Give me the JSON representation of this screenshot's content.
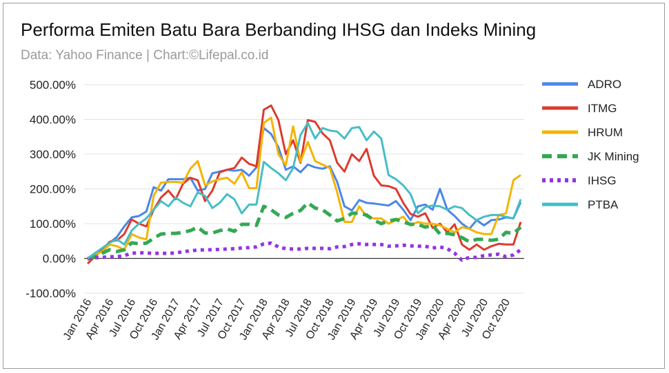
{
  "header": {
    "title": "Performa Emiten Batu Bara Berbanding IHSG dan Indeks Mining",
    "subtitle": "Data: Yahoo Finance | Chart:©Lifepal.co.id"
  },
  "chart_data": {
    "type": "line",
    "title": "Performa Emiten Batu Bara Berbanding IHSG dan Indeks Mining",
    "subtitle": "Data: Yahoo Finance | Chart:©Lifepal.co.id",
    "xlabel": "",
    "ylabel": "",
    "ylim": [
      -100,
      500
    ],
    "y_ticks": [
      500,
      400,
      300,
      200,
      100,
      0,
      -100
    ],
    "y_tick_labels": [
      "500.00%",
      "400.00%",
      "300.00%",
      "200.00%",
      "100.00%",
      "0.00%",
      "-100.00%"
    ],
    "x_tick_labels": [
      "Jan 2016",
      "Apr 2016",
      "Jul 2016",
      "Oct 2016",
      "Jan 2017",
      "Apr 2017",
      "Jul 2017",
      "Oct 2017",
      "Jan 2018",
      "Apr 2018",
      "Jul 2018",
      "Oct 2018",
      "Jan 2019",
      "Apr 2019",
      "Jul 2019",
      "Oct 2019",
      "Jan 2020",
      "Apr 2020",
      "Jul 2020",
      "Oct 2020"
    ],
    "legend_position": "right",
    "x": [
      "2016-01",
      "2016-02",
      "2016-03",
      "2016-04",
      "2016-05",
      "2016-06",
      "2016-07",
      "2016-08",
      "2016-09",
      "2016-10",
      "2016-11",
      "2016-12",
      "2017-01",
      "2017-02",
      "2017-03",
      "2017-04",
      "2017-05",
      "2017-06",
      "2017-07",
      "2017-08",
      "2017-09",
      "2017-10",
      "2017-11",
      "2017-12",
      "2018-01",
      "2018-02",
      "2018-03",
      "2018-04",
      "2018-05",
      "2018-06",
      "2018-07",
      "2018-08",
      "2018-09",
      "2018-10",
      "2018-11",
      "2018-12",
      "2019-01",
      "2019-02",
      "2019-03",
      "2019-04",
      "2019-05",
      "2019-06",
      "2019-07",
      "2019-08",
      "2019-09",
      "2019-10",
      "2019-11",
      "2019-12",
      "2020-01",
      "2020-02",
      "2020-03",
      "2020-04",
      "2020-05",
      "2020-06",
      "2020-07",
      "2020-08",
      "2020-09",
      "2020-10",
      "2020-11",
      "2020-12"
    ],
    "series": [
      {
        "name": "ADRO",
        "color": "#4a86e8",
        "dash": "solid",
        "values": [
          -5,
          10,
          28,
          45,
          62,
          92,
          118,
          122,
          135,
          205,
          195,
          228,
          228,
          228,
          232,
          195,
          200,
          245,
          250,
          255,
          252,
          255,
          238,
          262,
          375,
          358,
          320,
          255,
          265,
          248,
          270,
          262,
          258,
          265,
          220,
          150,
          138,
          168,
          160,
          158,
          155,
          152,
          165,
          140,
          110,
          150,
          155,
          140,
          200,
          140,
          122,
          100,
          85,
          110,
          95,
          110,
          112,
          118,
          115,
          162
        ]
      },
      {
        "name": "ITMG",
        "color": "#dc3b2e",
        "dash": "solid",
        "values": [
          -15,
          5,
          25,
          48,
          52,
          70,
          112,
          100,
          92,
          140,
          175,
          195,
          170,
          215,
          232,
          225,
          165,
          195,
          248,
          255,
          260,
          290,
          272,
          265,
          428,
          440,
          398,
          300,
          340,
          275,
          398,
          393,
          360,
          340,
          275,
          250,
          300,
          280,
          315,
          238,
          210,
          208,
          200,
          160,
          128,
          120,
          130,
          88,
          100,
          75,
          98,
          40,
          25,
          40,
          25,
          35,
          42,
          40,
          40,
          105
        ]
      },
      {
        "name": "HRUM",
        "color": "#f4b400",
        "dash": "solid",
        "values": [
          -5,
          10,
          20,
          40,
          35,
          25,
          70,
          60,
          55,
          180,
          218,
          220,
          220,
          218,
          258,
          280,
          210,
          222,
          228,
          232,
          215,
          248,
          202,
          202,
          390,
          405,
          300,
          268,
          380,
          278,
          335,
          280,
          270,
          260,
          190,
          105,
          105,
          150,
          120,
          115,
          115,
          100,
          110,
          120,
          95,
          105,
          100,
          100,
          95,
          85,
          75,
          90,
          85,
          75,
          70,
          70,
          125,
          130,
          225,
          240
        ]
      },
      {
        "name": "JK Mining",
        "color": "#34a853",
        "dash": "long",
        "values": [
          0,
          5,
          15,
          25,
          20,
          25,
          45,
          42,
          44,
          58,
          70,
          72,
          72,
          75,
          80,
          90,
          73,
          73,
          80,
          85,
          78,
          98,
          98,
          95,
          150,
          140,
          125,
          118,
          130,
          138,
          160,
          145,
          140,
          125,
          108,
          115,
          130,
          130,
          125,
          110,
          100,
          108,
          112,
          105,
          98,
          98,
          90,
          95,
          70,
          72,
          68,
          60,
          48,
          55,
          55,
          52,
          55,
          75,
          72,
          90
        ]
      },
      {
        "name": "IHSG",
        "color": "#9334e6",
        "dash": "dotted",
        "values": [
          0,
          2,
          3,
          5,
          5,
          8,
          15,
          16,
          16,
          14,
          15,
          14,
          16,
          19,
          22,
          24,
          25,
          25,
          26,
          27,
          28,
          30,
          31,
          33,
          42,
          44,
          33,
          28,
          27,
          27,
          29,
          29,
          29,
          28,
          33,
          34,
          40,
          42,
          40,
          40,
          40,
          35,
          36,
          38,
          36,
          35,
          35,
          30,
          33,
          28,
          15,
          -5,
          3,
          3,
          8,
          10,
          12,
          5,
          10,
          25
        ]
      },
      {
        "name": "PTBA",
        "color": "#46bdc6",
        "dash": "solid",
        "values": [
          0,
          15,
          30,
          45,
          55,
          40,
          80,
          100,
          115,
          140,
          165,
          150,
          175,
          160,
          150,
          190,
          180,
          145,
          160,
          185,
          170,
          130,
          155,
          155,
          278,
          260,
          245,
          225,
          260,
          355,
          390,
          345,
          375,
          368,
          365,
          345,
          375,
          378,
          340,
          365,
          345,
          240,
          228,
          210,
          185,
          130,
          148,
          152,
          150,
          140,
          150,
          145,
          125,
          110,
          120,
          125,
          125,
          120,
          115,
          170
        ]
      }
    ]
  }
}
